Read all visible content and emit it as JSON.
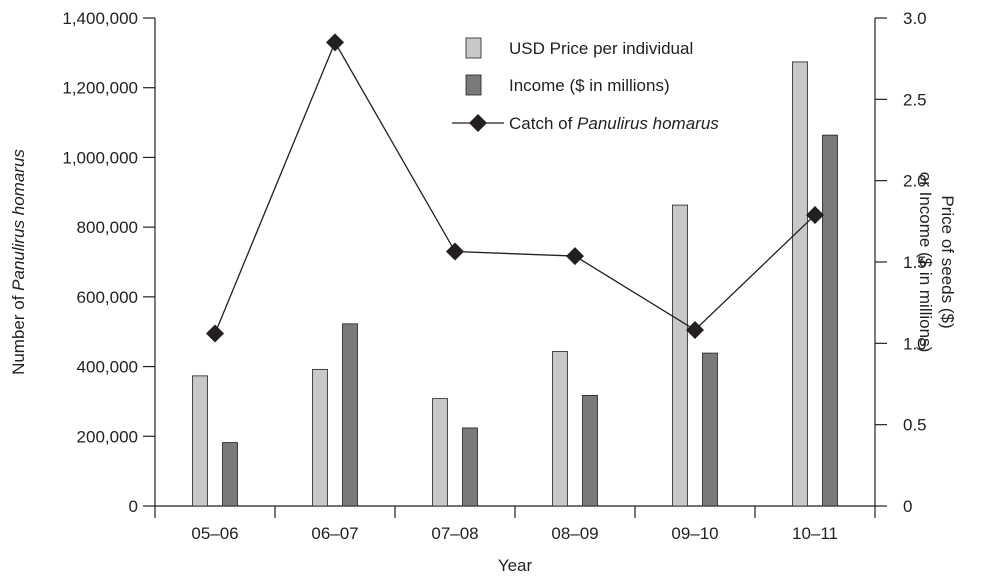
{
  "chart_data": {
    "type": "bar",
    "categories": [
      "05–06",
      "06–07",
      "07–08",
      "08–09",
      "09–10",
      "10–11"
    ],
    "xlabel": "Year",
    "ylabel_left": {
      "prefix": "Number of ",
      "italic": "Panulirus homarus"
    },
    "ylabel_right": [
      "Price of seeds ($)",
      "or Income ($ in millions)"
    ],
    "ylim_left": [
      0,
      1400000
    ],
    "ylim_right": [
      0,
      3.0
    ],
    "yticks_left": [
      "0",
      "200,000",
      "400,000",
      "600,000",
      "800,000",
      "1,000,000",
      "1,200,000",
      "1,400,000"
    ],
    "yticks_right": [
      "0",
      "0.5",
      "1.0",
      "1.5",
      "2.0",
      "2.5",
      "3.0"
    ],
    "grid": false,
    "legend_position": "top-right",
    "series": [
      {
        "name": "USD Price per individual",
        "kind": "bar",
        "axis": "right",
        "color": "#c8c8c8",
        "values": [
          0.8,
          0.84,
          0.66,
          0.95,
          1.85,
          2.73
        ]
      },
      {
        "name": "Income ($ in millions)",
        "kind": "bar",
        "axis": "right",
        "color": "#7a7a7a",
        "values": [
          0.39,
          1.12,
          0.48,
          0.68,
          0.94,
          2.28
        ]
      },
      {
        "name": "Catch of",
        "name_italic": "Panulirus homarus",
        "kind": "line",
        "marker": "diamond",
        "axis": "left",
        "color": "#231f20",
        "values": [
          495000,
          1330000,
          730000,
          717000,
          505000,
          835000
        ]
      }
    ]
  }
}
